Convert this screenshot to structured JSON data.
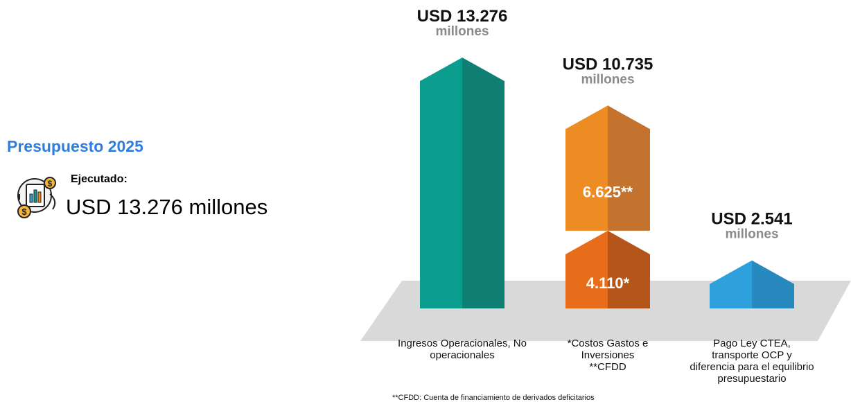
{
  "summary": {
    "title": "Presupuesto 2025",
    "executed_label": "Ejecutado:",
    "executed_value": "USD 13.276 millones",
    "icon": "budget-document-coins-icon"
  },
  "chart_data": {
    "type": "bar",
    "title": "",
    "xlabel": "",
    "ylabel": "",
    "unit": "millones",
    "categories": [
      [
        "Ingresos Operacionales, No",
        "operacionales"
      ],
      [
        "*Costos Gastos e",
        "Inversiones",
        "**CFDD"
      ],
      [
        "Pago Ley CTEA,",
        "transporte OCP y",
        "diferencia para el equilibrio",
        "presupuestario"
      ]
    ],
    "values": [
      13276,
      10735,
      2541
    ],
    "value_labels": [
      "USD 13.276",
      "USD 10.735",
      "USD 2.541"
    ],
    "segments": [
      [],
      [
        {
          "value": 4110,
          "label": "4.110*",
          "color_light": "#e86d1a",
          "color_dark": "#b4561a"
        },
        {
          "value": 6625,
          "label": "6.625**",
          "color_light": "#ee8c24",
          "color_dark": "#c4732e"
        }
      ],
      []
    ],
    "colors": [
      {
        "light": "#0b9e8e",
        "dark": "#0e7f72"
      },
      {
        "light": "#ee8c24",
        "dark": "#c4732e"
      },
      {
        "light": "#2ea0dc",
        "dark": "#2889bf"
      }
    ],
    "footnote": "**CFDD: Cuenta de financiamiento de derivados deficitarios"
  }
}
